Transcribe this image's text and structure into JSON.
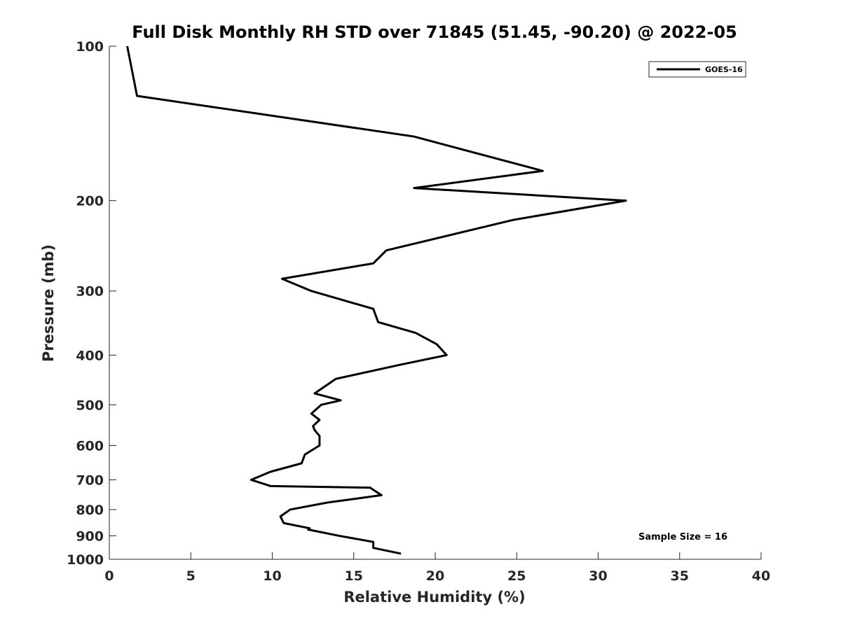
{
  "chart_data": {
    "type": "line",
    "title": "Full Disk Monthly RH STD over 71845 (51.45, -90.20) @ 2022-05",
    "xlabel": "Relative Humidity (%)",
    "ylabel": "Pressure (mb)",
    "xlim": [
      0,
      40
    ],
    "ylim": [
      100,
      1000
    ],
    "y_scale": "log",
    "y_reversed": true,
    "x_ticks": [
      0,
      5,
      10,
      15,
      20,
      25,
      30,
      35,
      40
    ],
    "y_ticks": [
      100,
      200,
      300,
      400,
      500,
      600,
      700,
      800,
      900,
      1000
    ],
    "grid": false,
    "legend": {
      "position": "top-right",
      "entries": [
        "GOES-16"
      ]
    },
    "annotation": "Sample Size = 16",
    "series": [
      {
        "name": "GOES-16",
        "color": "#000000",
        "points": [
          [
            1.1,
            100
          ],
          [
            1.7,
            125
          ],
          [
            18.7,
            150
          ],
          [
            26.6,
            175
          ],
          [
            18.7,
            189
          ],
          [
            31.7,
            200
          ],
          [
            24.8,
            218
          ],
          [
            17.0,
            250
          ],
          [
            16.2,
            265
          ],
          [
            10.6,
            284
          ],
          [
            12.4,
            300
          ],
          [
            16.2,
            325
          ],
          [
            16.5,
            345
          ],
          [
            18.8,
            362
          ],
          [
            20.1,
            381
          ],
          [
            20.7,
            400
          ],
          [
            17.8,
            418
          ],
          [
            13.9,
            445
          ],
          [
            12.6,
            475
          ],
          [
            14.2,
            490
          ],
          [
            13.0,
            500
          ],
          [
            12.4,
            520
          ],
          [
            12.9,
            535
          ],
          [
            12.5,
            550
          ],
          [
            12.6,
            560
          ],
          [
            12.9,
            575
          ],
          [
            12.9,
            600
          ],
          [
            12.0,
            625
          ],
          [
            11.8,
            650
          ],
          [
            9.9,
            675
          ],
          [
            8.7,
            700
          ],
          [
            9.9,
            720
          ],
          [
            16.0,
            725
          ],
          [
            16.7,
            750
          ],
          [
            13.4,
            775
          ],
          [
            11.1,
            800
          ],
          [
            10.5,
            825
          ],
          [
            10.7,
            850
          ],
          [
            12.3,
            870
          ],
          [
            12.2,
            875
          ],
          [
            14.1,
            900
          ],
          [
            16.2,
            925
          ],
          [
            16.2,
            950
          ],
          [
            17.9,
            975
          ]
        ]
      }
    ]
  }
}
